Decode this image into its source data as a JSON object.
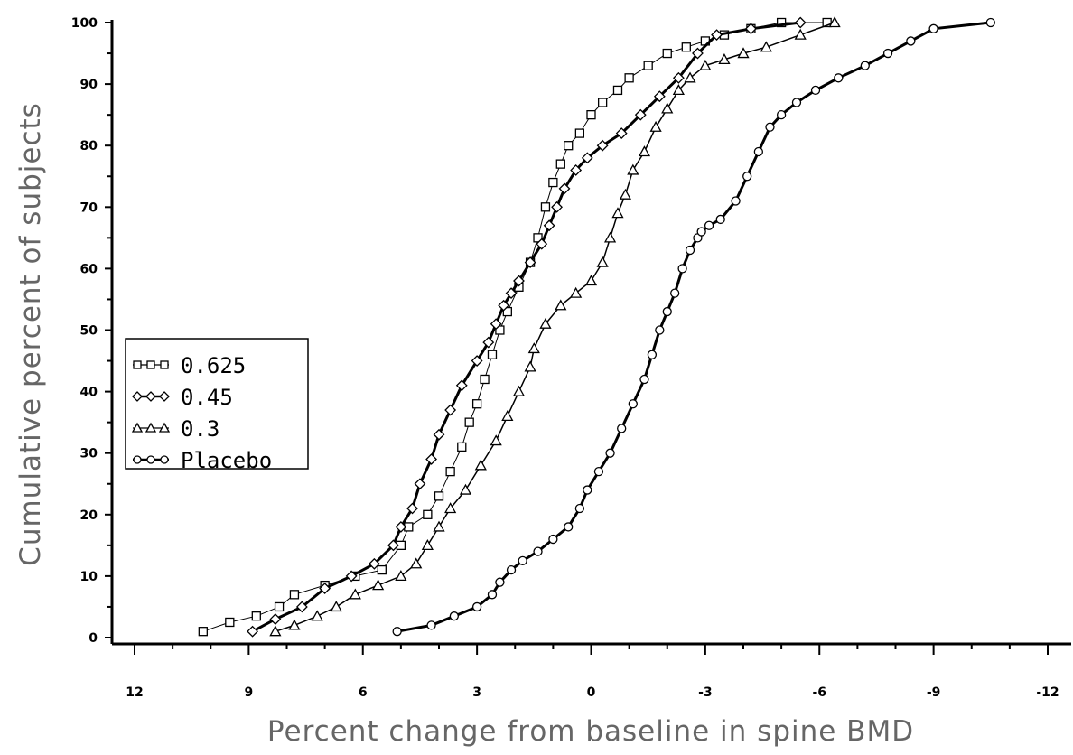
{
  "chart_data": {
    "type": "line",
    "title": "",
    "xlabel": "Percent change from baseline in spine BMD",
    "ylabel": "Cumulative percent of subjects",
    "xlim": [
      12,
      -12
    ],
    "ylim": [
      0,
      100
    ],
    "x_reversed": true,
    "grid": false,
    "legend_position": "middle-left",
    "x_ticks": [
      12,
      9,
      6,
      3,
      0,
      -3,
      -6,
      -9,
      -12
    ],
    "x_tick_labels": [
      "12",
      "9",
      "6",
      "3",
      "0",
      "-3",
      "-6",
      "-9",
      "-12"
    ],
    "y_ticks": [
      0,
      10,
      20,
      30,
      40,
      50,
      60,
      70,
      80,
      90,
      100
    ],
    "y_tick_labels": [
      "0",
      "10",
      "20",
      "30",
      "40",
      "50",
      "60",
      "70",
      "80",
      "90",
      "100"
    ],
    "series": [
      {
        "name": "0.625",
        "marker": "square",
        "stroke_width": 1,
        "x": [
          10.2,
          9.5,
          8.8,
          8.2,
          7.8,
          7.0,
          6.2,
          5.5,
          5.0,
          4.8,
          4.3,
          4.0,
          3.7,
          3.4,
          3.2,
          3.0,
          2.8,
          2.6,
          2.4,
          2.2,
          1.9,
          1.6,
          1.4,
          1.2,
          1.0,
          0.8,
          0.6,
          0.3,
          0.0,
          -0.3,
          -0.7,
          -1.0,
          -1.5,
          -2.0,
          -2.5,
          -3.0,
          -3.5,
          -4.2,
          -5.0,
          -6.2
        ],
        "y": [
          1,
          2.5,
          3.5,
          5,
          7,
          8.5,
          10,
          11,
          15,
          18,
          20,
          23,
          27,
          31,
          35,
          38,
          42,
          46,
          50,
          53,
          57,
          61,
          65,
          70,
          74,
          77,
          80,
          82,
          85,
          87,
          89,
          91,
          93,
          95,
          96,
          97,
          98,
          99,
          100,
          100
        ]
      },
      {
        "name": "0.45",
        "marker": "diamond",
        "stroke_width": 3,
        "x": [
          8.9,
          8.3,
          7.6,
          7.0,
          6.3,
          5.7,
          5.2,
          5.0,
          4.7,
          4.5,
          4.2,
          4.0,
          3.7,
          3.4,
          3.0,
          2.7,
          2.5,
          2.3,
          2.1,
          1.9,
          1.6,
          1.3,
          1.1,
          0.9,
          0.7,
          0.4,
          0.1,
          -0.3,
          -0.8,
          -1.3,
          -1.8,
          -2.3,
          -2.8,
          -3.3,
          -4.2,
          -5.5
        ],
        "y": [
          1,
          3,
          5,
          8,
          10,
          12,
          15,
          18,
          21,
          25,
          29,
          33,
          37,
          41,
          45,
          48,
          51,
          54,
          56,
          58,
          61,
          64,
          67,
          70,
          73,
          76,
          78,
          80,
          82,
          85,
          88,
          91,
          95,
          98,
          99,
          100
        ]
      },
      {
        "name": "0.3",
        "marker": "triangle",
        "stroke_width": 1.5,
        "x": [
          8.3,
          7.8,
          7.2,
          6.7,
          6.2,
          5.6,
          5.0,
          4.6,
          4.3,
          4.0,
          3.7,
          3.3,
          2.9,
          2.5,
          2.2,
          1.9,
          1.6,
          1.5,
          1.2,
          0.8,
          0.4,
          0.0,
          -0.3,
          -0.5,
          -0.7,
          -0.9,
          -1.1,
          -1.4,
          -1.7,
          -2.0,
          -2.3,
          -2.6,
          -3.0,
          -3.5,
          -4.0,
          -4.6,
          -5.5,
          -6.4
        ],
        "y": [
          1,
          2,
          3.5,
          5,
          7,
          8.5,
          10,
          12,
          15,
          18,
          21,
          24,
          28,
          32,
          36,
          40,
          44,
          47,
          51,
          54,
          56,
          58,
          61,
          65,
          69,
          72,
          76,
          79,
          83,
          86,
          89,
          91,
          93,
          94,
          95,
          96,
          98,
          100
        ]
      },
      {
        "name": "Placebo",
        "marker": "circle",
        "stroke_width": 3,
        "x": [
          5.1,
          4.2,
          3.6,
          3.0,
          2.6,
          2.4,
          2.1,
          1.8,
          1.4,
          1.0,
          0.6,
          0.3,
          0.1,
          -0.2,
          -0.5,
          -0.8,
          -1.1,
          -1.4,
          -1.6,
          -1.8,
          -2.0,
          -2.2,
          -2.4,
          -2.6,
          -2.8,
          -2.9,
          -3.1,
          -3.4,
          -3.8,
          -4.1,
          -4.4,
          -4.7,
          -5.0,
          -5.4,
          -5.9,
          -6.5,
          -7.2,
          -7.8,
          -8.4,
          -9.0,
          -10.5
        ],
        "y": [
          1,
          2,
          3.5,
          5,
          7,
          9,
          11,
          12.5,
          14,
          16,
          18,
          21,
          24,
          27,
          30,
          34,
          38,
          42,
          46,
          50,
          53,
          56,
          60,
          63,
          65,
          66,
          67,
          68,
          71,
          75,
          79,
          83,
          85,
          87,
          89,
          91,
          93,
          95,
          97,
          99,
          100
        ]
      }
    ]
  }
}
